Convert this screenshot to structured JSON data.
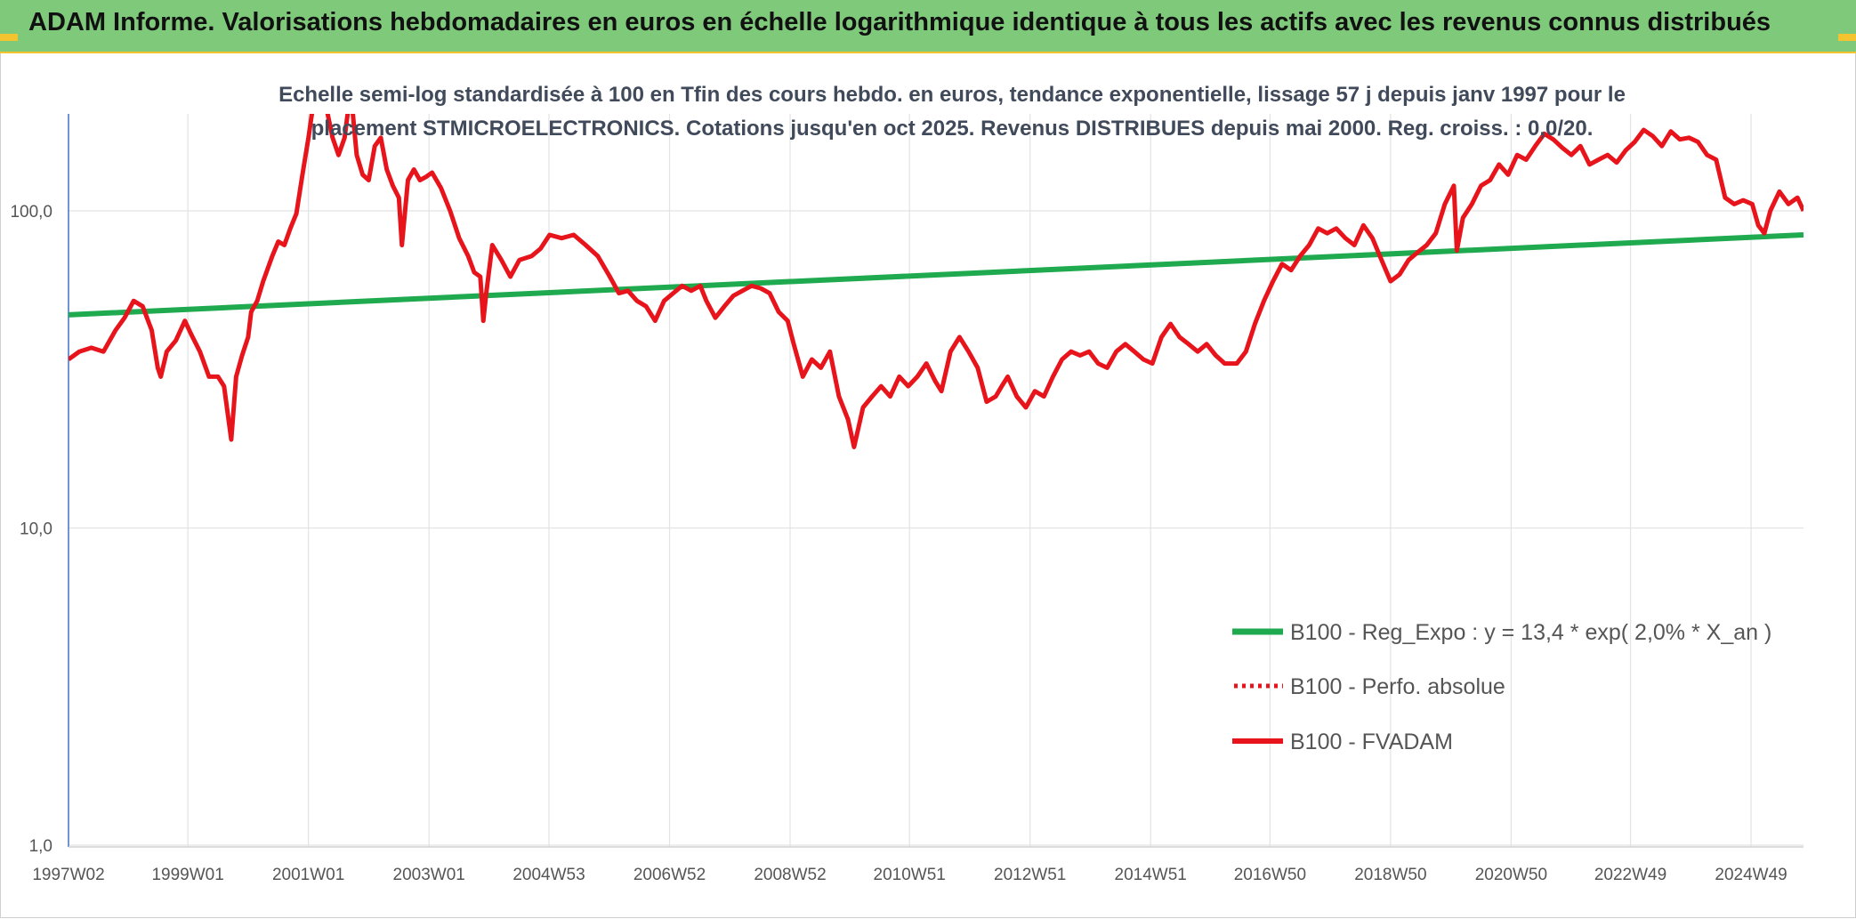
{
  "header": {
    "title": "ADAM Informe. Valorisations hebdomadaires en euros en échelle logarithmique identique à tous les actifs avec les revenus connus distribués"
  },
  "colors": {
    "banner": "#7fc97a",
    "accent": "#f4c430",
    "trend": "#1faa4f",
    "series": "#e8141c"
  },
  "chart_data": {
    "type": "line",
    "title_line1": "Echelle semi-log standardisée à 100 en Tfin des cours hebdo. en euros, tendance exponentielle, lissage 57 j depuis janv 1997 pour le",
    "title_line2": "placement STMICROELECTRONICS. Cotations jusqu'en oct 2025. Revenus DISTRIBUES depuis mai 2000. Reg. croiss. : 0,0/20.",
    "y_scale": "log",
    "ylim": [
      1,
      200
    ],
    "y_ticks": [
      {
        "value": 1,
        "label": "1,0"
      },
      {
        "value": 10,
        "label": "10,0"
      },
      {
        "value": 100,
        "label": "100,0"
      }
    ],
    "x_range": [
      1997.02,
      2025.8
    ],
    "x_ticks": [
      {
        "value": 1997.02,
        "label": "1997W02"
      },
      {
        "value": 1999.0,
        "label": "1999W01"
      },
      {
        "value": 2001.0,
        "label": "2001W01"
      },
      {
        "value": 2003.0,
        "label": "2003W01"
      },
      {
        "value": 2004.99,
        "label": "2004W53"
      },
      {
        "value": 2006.99,
        "label": "2006W52"
      },
      {
        "value": 2008.99,
        "label": "2008W52"
      },
      {
        "value": 2010.97,
        "label": "2010W51"
      },
      {
        "value": 2012.97,
        "label": "2012W51"
      },
      {
        "value": 2014.97,
        "label": "2014W51"
      },
      {
        "value": 2016.95,
        "label": "2016W50"
      },
      {
        "value": 2018.95,
        "label": "2018W50"
      },
      {
        "value": 2020.95,
        "label": "2020W50"
      },
      {
        "value": 2022.93,
        "label": "2022W49"
      },
      {
        "value": 2024.93,
        "label": "2024W49"
      }
    ],
    "grid": "vertical and horizontal",
    "legend_position": "bottom-right",
    "legend": [
      {
        "key": "trend",
        "label": "B100 - Reg_Expo : y = 13,4 * exp( 2,0% *  X_an )",
        "style": "solid-green"
      },
      {
        "key": "perf",
        "label": "B100 - Perfo. absolue",
        "style": "dotted-red"
      },
      {
        "key": "fvadam",
        "label": "B100 - FVADAM",
        "style": "solid-red"
      }
    ],
    "series": [
      {
        "key": "trend",
        "points": [
          [
            1997.02,
            47
          ],
          [
            2025.8,
            84
          ]
        ]
      },
      {
        "key": "fvadam",
        "points": [
          [
            1997.02,
            34
          ],
          [
            1997.2,
            36
          ],
          [
            1997.4,
            37
          ],
          [
            1997.6,
            36
          ],
          [
            1997.8,
            42
          ],
          [
            1997.95,
            46
          ],
          [
            1998.1,
            52
          ],
          [
            1998.25,
            50
          ],
          [
            1998.4,
            42
          ],
          [
            1998.5,
            32
          ],
          [
            1998.55,
            30
          ],
          [
            1998.65,
            36
          ],
          [
            1998.8,
            39
          ],
          [
            1998.95,
            45
          ],
          [
            1999.05,
            41
          ],
          [
            1999.2,
            36
          ],
          [
            1999.35,
            30
          ],
          [
            1999.5,
            30
          ],
          [
            1999.6,
            28
          ],
          [
            1999.72,
            19
          ],
          [
            1999.8,
            30
          ],
          [
            1999.9,
            35
          ],
          [
            2000.0,
            40
          ],
          [
            2000.05,
            48
          ],
          [
            2000.15,
            52
          ],
          [
            2000.25,
            60
          ],
          [
            2000.4,
            72
          ],
          [
            2000.5,
            80
          ],
          [
            2000.6,
            78
          ],
          [
            2000.7,
            88
          ],
          [
            2000.8,
            98
          ],
          [
            2000.9,
            130
          ],
          [
            2001.0,
            170
          ],
          [
            2001.1,
            230
          ],
          [
            2001.2,
            290
          ],
          [
            2001.3,
            210
          ],
          [
            2001.4,
            170
          ],
          [
            2001.5,
            150
          ],
          [
            2001.6,
            170
          ],
          [
            2001.7,
            240
          ],
          [
            2001.8,
            150
          ],
          [
            2001.9,
            130
          ],
          [
            2002.0,
            125
          ],
          [
            2002.1,
            160
          ],
          [
            2002.2,
            170
          ],
          [
            2002.3,
            135
          ],
          [
            2002.4,
            120
          ],
          [
            2002.5,
            110
          ],
          [
            2002.55,
            78
          ],
          [
            2002.65,
            125
          ],
          [
            2002.75,
            135
          ],
          [
            2002.85,
            125
          ],
          [
            2002.95,
            128
          ],
          [
            2003.05,
            132
          ],
          [
            2003.2,
            118
          ],
          [
            2003.35,
            100
          ],
          [
            2003.5,
            82
          ],
          [
            2003.65,
            72
          ],
          [
            2003.75,
            64
          ],
          [
            2003.85,
            62
          ],
          [
            2003.9,
            45
          ],
          [
            2003.95,
            55
          ],
          [
            2004.05,
            78
          ],
          [
            2004.2,
            70
          ],
          [
            2004.35,
            62
          ],
          [
            2004.5,
            70
          ],
          [
            2004.7,
            72
          ],
          [
            2004.85,
            76
          ],
          [
            2005.0,
            84
          ],
          [
            2005.2,
            82
          ],
          [
            2005.4,
            84
          ],
          [
            2005.6,
            78
          ],
          [
            2005.8,
            72
          ],
          [
            2006.0,
            62
          ],
          [
            2006.15,
            55
          ],
          [
            2006.3,
            56
          ],
          [
            2006.45,
            52
          ],
          [
            2006.6,
            50
          ],
          [
            2006.75,
            45
          ],
          [
            2006.9,
            52
          ],
          [
            2007.05,
            55
          ],
          [
            2007.2,
            58
          ],
          [
            2007.35,
            56
          ],
          [
            2007.5,
            58
          ],
          [
            2007.6,
            52
          ],
          [
            2007.75,
            46
          ],
          [
            2007.9,
            50
          ],
          [
            2008.05,
            54
          ],
          [
            2008.2,
            56
          ],
          [
            2008.35,
            58
          ],
          [
            2008.5,
            57
          ],
          [
            2008.65,
            55
          ],
          [
            2008.8,
            48
          ],
          [
            2008.95,
            45
          ],
          [
            2009.05,
            38
          ],
          [
            2009.2,
            30
          ],
          [
            2009.35,
            34
          ],
          [
            2009.5,
            32
          ],
          [
            2009.65,
            36
          ],
          [
            2009.8,
            26
          ],
          [
            2009.95,
            22
          ],
          [
            2010.05,
            18
          ],
          [
            2010.2,
            24
          ],
          [
            2010.35,
            26
          ],
          [
            2010.5,
            28
          ],
          [
            2010.65,
            26
          ],
          [
            2010.8,
            30
          ],
          [
            2010.95,
            28
          ],
          [
            2011.1,
            30
          ],
          [
            2011.25,
            33
          ],
          [
            2011.4,
            29
          ],
          [
            2011.5,
            27
          ],
          [
            2011.65,
            36
          ],
          [
            2011.8,
            40
          ],
          [
            2011.95,
            36
          ],
          [
            2012.1,
            32
          ],
          [
            2012.25,
            25
          ],
          [
            2012.4,
            26
          ],
          [
            2012.5,
            28
          ],
          [
            2012.6,
            30
          ],
          [
            2012.75,
            26
          ],
          [
            2012.9,
            24
          ],
          [
            2013.05,
            27
          ],
          [
            2013.2,
            26
          ],
          [
            2013.35,
            30
          ],
          [
            2013.5,
            34
          ],
          [
            2013.65,
            36
          ],
          [
            2013.8,
            35
          ],
          [
            2013.95,
            36
          ],
          [
            2014.1,
            33
          ],
          [
            2014.25,
            32
          ],
          [
            2014.4,
            36
          ],
          [
            2014.55,
            38
          ],
          [
            2014.7,
            36
          ],
          [
            2014.85,
            34
          ],
          [
            2015.0,
            33
          ],
          [
            2015.15,
            40
          ],
          [
            2015.3,
            44
          ],
          [
            2015.45,
            40
          ],
          [
            2015.6,
            38
          ],
          [
            2015.75,
            36
          ],
          [
            2015.9,
            38
          ],
          [
            2016.05,
            35
          ],
          [
            2016.2,
            33
          ],
          [
            2016.4,
            33
          ],
          [
            2016.55,
            36
          ],
          [
            2016.7,
            44
          ],
          [
            2016.85,
            52
          ],
          [
            2017.0,
            60
          ],
          [
            2017.15,
            68
          ],
          [
            2017.3,
            65
          ],
          [
            2017.45,
            72
          ],
          [
            2017.6,
            78
          ],
          [
            2017.75,
            88
          ],
          [
            2017.9,
            85
          ],
          [
            2018.05,
            88
          ],
          [
            2018.2,
            82
          ],
          [
            2018.35,
            78
          ],
          [
            2018.5,
            90
          ],
          [
            2018.65,
            82
          ],
          [
            2018.8,
            70
          ],
          [
            2018.95,
            60
          ],
          [
            2019.1,
            63
          ],
          [
            2019.25,
            70
          ],
          [
            2019.4,
            74
          ],
          [
            2019.55,
            78
          ],
          [
            2019.7,
            85
          ],
          [
            2019.85,
            105
          ],
          [
            2020.0,
            120
          ],
          [
            2020.05,
            75
          ],
          [
            2020.15,
            95
          ],
          [
            2020.3,
            105
          ],
          [
            2020.45,
            120
          ],
          [
            2020.6,
            125
          ],
          [
            2020.75,
            140
          ],
          [
            2020.9,
            130
          ],
          [
            2021.05,
            150
          ],
          [
            2021.2,
            145
          ],
          [
            2021.35,
            160
          ],
          [
            2021.5,
            175
          ],
          [
            2021.65,
            168
          ],
          [
            2021.8,
            158
          ],
          [
            2021.95,
            150
          ],
          [
            2022.1,
            160
          ],
          [
            2022.25,
            140
          ],
          [
            2022.4,
            145
          ],
          [
            2022.55,
            150
          ],
          [
            2022.7,
            142
          ],
          [
            2022.85,
            155
          ],
          [
            2023.0,
            165
          ],
          [
            2023.15,
            180
          ],
          [
            2023.3,
            172
          ],
          [
            2023.45,
            160
          ],
          [
            2023.6,
            178
          ],
          [
            2023.75,
            168
          ],
          [
            2023.9,
            170
          ],
          [
            2024.05,
            165
          ],
          [
            2024.2,
            150
          ],
          [
            2024.35,
            145
          ],
          [
            2024.5,
            110
          ],
          [
            2024.65,
            105
          ],
          [
            2024.8,
            108
          ],
          [
            2024.95,
            105
          ],
          [
            2025.05,
            90
          ],
          [
            2025.15,
            85
          ],
          [
            2025.25,
            100
          ],
          [
            2025.4,
            115
          ],
          [
            2025.55,
            105
          ],
          [
            2025.7,
            110
          ],
          [
            2025.8,
            100
          ]
        ]
      }
    ]
  }
}
